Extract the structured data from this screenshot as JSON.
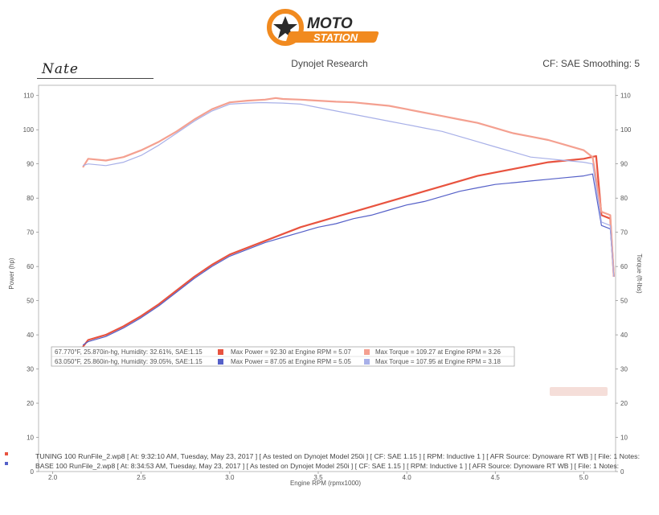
{
  "header": {
    "logo_text_top": "MOTO",
    "logo_text_bottom": "STATION",
    "source": "Dynojet Research",
    "cf_label": "CF: SAE Smoothing: 5",
    "signature": "Nate"
  },
  "colors": {
    "run1": "#e8533f",
    "run1_light": "#f4a090",
    "run2": "#5560c8",
    "run2_light": "#a8b0e8",
    "logo_orange": "#f18a1f",
    "logo_dark": "#2b2b2b"
  },
  "legend": [
    {
      "conditions": "67.770°F, 25.870in-hg, Humidity: 32.61%, SAE:1.15",
      "max_power": "Max Power = 92.30 at Engine RPM = 5.07",
      "max_torque": "Max Torque = 109.27 at Engine RPM = 3.26"
    },
    {
      "conditions": "63.050°F, 25.860in-hg, Humidity: 39.05%, SAE:1.15",
      "max_power": "Max Power = 87.05 at Engine RPM = 5.05",
      "max_torque": "Max Torque = 107.95 at Engine RPM = 3.18"
    }
  ],
  "run_lines": [
    "TUNING 100 RunFile_2.wp8 [ At: 9:32:10 AM, Tuesday, May 23, 2017 ] [ As tested on Dynojet Model 250i ] [ CF: SAE 1.15 ] [ RPM: Inductive 1 ] [ AFR Source: Dynoware RT WB ] [ File: 1 Notes:",
    "BASE 100 RunFile_2.wp8 [ At: 8:34:53 AM, Tuesday, May 23, 2017 ] [ As tested on Dynojet Model 250i ] [ CF: SAE 1.15 ] [ RPM: Inductive 1 ] [ AFR Source: Dynoware RT WB ] [ File: 1 Notes:"
  ],
  "chart_data": {
    "type": "line",
    "xlabel": "Engine RPM (rpmx1000)",
    "ylabel": "Power (hp)",
    "y2label": "Torque (ft-lbs)",
    "xlim": [
      1.92,
      5.18
    ],
    "ylim": [
      0,
      113
    ],
    "xticks": [
      2.0,
      2.5,
      3.0,
      3.5,
      4.0,
      4.5,
      5.0
    ],
    "yticks": [
      0,
      10,
      20,
      30,
      40,
      50,
      60,
      70,
      80,
      90,
      100,
      110
    ],
    "grid": false,
    "series": [
      {
        "x": [
          2.17,
          2.2,
          2.3,
          2.4,
          2.5,
          2.6,
          2.7,
          2.8,
          2.9,
          3.0,
          3.1,
          3.2,
          3.3,
          3.4,
          3.5,
          3.6,
          3.7,
          3.8,
          3.9,
          4.0,
          4.1,
          4.2,
          4.3,
          4.4,
          4.5,
          4.6,
          4.7,
          4.8,
          4.9,
          5.0,
          5.07,
          5.1,
          5.15,
          5.17
        ],
        "y": [
          36.5,
          38.5,
          40,
          42.5,
          45.5,
          49,
          53,
          57,
          60.5,
          63.5,
          65.5,
          67.5,
          69.5,
          71.5,
          73,
          74.5,
          76,
          77.5,
          79,
          80.5,
          82,
          83.5,
          85,
          86.5,
          87.5,
          88.5,
          89.5,
          90.5,
          91,
          91.5,
          92.3,
          75,
          74,
          57
        ]
      },
      {
        "x": [
          2.17,
          2.2,
          2.3,
          2.4,
          2.5,
          2.6,
          2.7,
          2.8,
          2.9,
          3.0,
          3.1,
          3.2,
          3.3,
          3.4,
          3.5,
          3.6,
          3.7,
          3.8,
          3.9,
          4.0,
          4.1,
          4.2,
          4.3,
          4.4,
          4.5,
          4.6,
          4.7,
          4.8,
          4.9,
          5.0,
          5.05,
          5.1,
          5.15,
          5.17
        ],
        "y": [
          37,
          38,
          39.5,
          42,
          45,
          48.5,
          52.5,
          56.5,
          60,
          63,
          65,
          67,
          68.5,
          70,
          71.5,
          72.5,
          74,
          75,
          76.5,
          78,
          79,
          80.5,
          82,
          83,
          84,
          84.5,
          85,
          85.5,
          86,
          86.5,
          87.05,
          72,
          71,
          57
        ]
      },
      {
        "x": [
          2.17,
          2.2,
          2.3,
          2.4,
          2.5,
          2.6,
          2.7,
          2.8,
          2.9,
          3.0,
          3.1,
          3.2,
          3.26,
          3.3,
          3.4,
          3.5,
          3.6,
          3.7,
          3.8,
          3.9,
          4.0,
          4.1,
          4.2,
          4.3,
          4.4,
          4.5,
          4.6,
          4.7,
          4.8,
          4.9,
          5.0,
          5.05,
          5.1,
          5.15,
          5.17
        ],
        "y": [
          89,
          91.5,
          91,
          92,
          94,
          96.5,
          99.5,
          103,
          106,
          108,
          108.5,
          108.8,
          109.27,
          109,
          108.8,
          108.5,
          108.2,
          108,
          107.5,
          107,
          106,
          105,
          104,
          103,
          102,
          100.5,
          99,
          98,
          97,
          95.5,
          94,
          92,
          76,
          75,
          57
        ]
      },
      {
        "x": [
          2.17,
          2.2,
          2.3,
          2.4,
          2.5,
          2.6,
          2.7,
          2.8,
          2.9,
          3.0,
          3.1,
          3.18,
          3.3,
          3.4,
          3.5,
          3.6,
          3.7,
          3.8,
          3.9,
          4.0,
          4.1,
          4.2,
          4.3,
          4.4,
          4.5,
          4.6,
          4.7,
          4.8,
          4.9,
          5.0,
          5.05,
          5.1,
          5.15,
          5.17
        ],
        "y": [
          89.5,
          90,
          89.5,
          90.5,
          92.5,
          95.5,
          99,
          102.5,
          105.5,
          107.5,
          107.8,
          107.95,
          107.8,
          107.5,
          106.5,
          105.5,
          104.5,
          103.5,
          102.5,
          101.5,
          100.5,
          99.5,
          98,
          96.5,
          95,
          93.5,
          92,
          91.5,
          91,
          90.5,
          90,
          73,
          72,
          57
        ]
      }
    ]
  }
}
